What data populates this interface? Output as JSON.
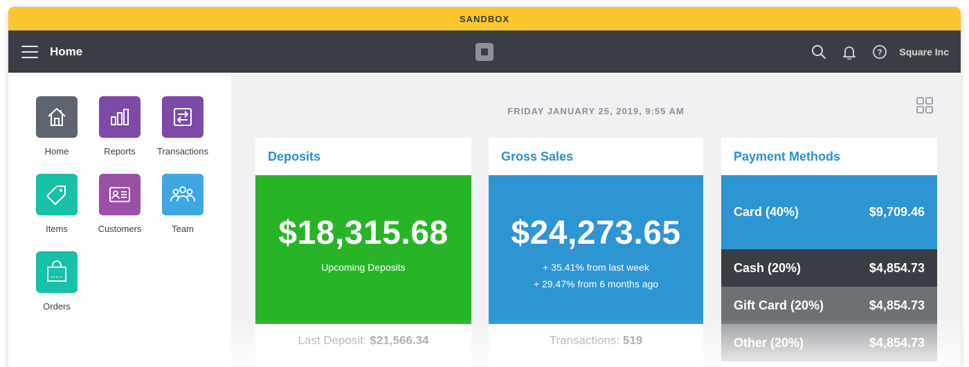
{
  "banner": {
    "label": "SANDBOX"
  },
  "topbar": {
    "title": "Home",
    "account": "Square Inc"
  },
  "apps": [
    {
      "label": "Home",
      "color": "#5e6470",
      "icon": "home-icon"
    },
    {
      "label": "Reports",
      "color": "#7d4aa8",
      "icon": "bar-chart-icon"
    },
    {
      "label": "Transactions",
      "color": "#7d4aa8",
      "icon": "transfer-icon"
    },
    {
      "label": "Items",
      "color": "#17c0a6",
      "icon": "tag-icon"
    },
    {
      "label": "Customers",
      "color": "#9b4fa6",
      "icon": "contact-card-icon"
    },
    {
      "label": "Team",
      "color": "#3fa6e0",
      "icon": "people-icon"
    },
    {
      "label": "Orders",
      "color": "#17c0a6",
      "icon": "shopping-bag-icon"
    }
  ],
  "dashboard": {
    "datetime": "FRIDAY JANUARY 25, 2019, 9:55 AM",
    "deposits": {
      "title": "Deposits",
      "amount": "$18,315.68",
      "caption": "Upcoming Deposits",
      "footer_label": "Last Deposit: ",
      "footer_value": "$21,566.34",
      "color": "#27b527"
    },
    "gross_sales": {
      "title": "Gross Sales",
      "amount": "$24,273.65",
      "change_week": "+ 35.41% from last week",
      "change_6mo": "+ 29.47% from 6 months ago",
      "footer_label": "Transactions: ",
      "footer_value": "519",
      "color": "#2d95d2"
    },
    "payment_methods": {
      "title": "Payment Methods",
      "rows": [
        {
          "label": "Card (40%)",
          "value": "$9,709.46",
          "color": "#2d95d2"
        },
        {
          "label": "Cash (20%)",
          "value": "$4,854.73",
          "color": "#3a3e44"
        },
        {
          "label": "Gift Card (20%)",
          "value": "$4,854.73",
          "color": "#6d7075"
        },
        {
          "label": "Other (20%)",
          "value": "$4,854.73",
          "color": "#9a9da1"
        }
      ]
    }
  }
}
